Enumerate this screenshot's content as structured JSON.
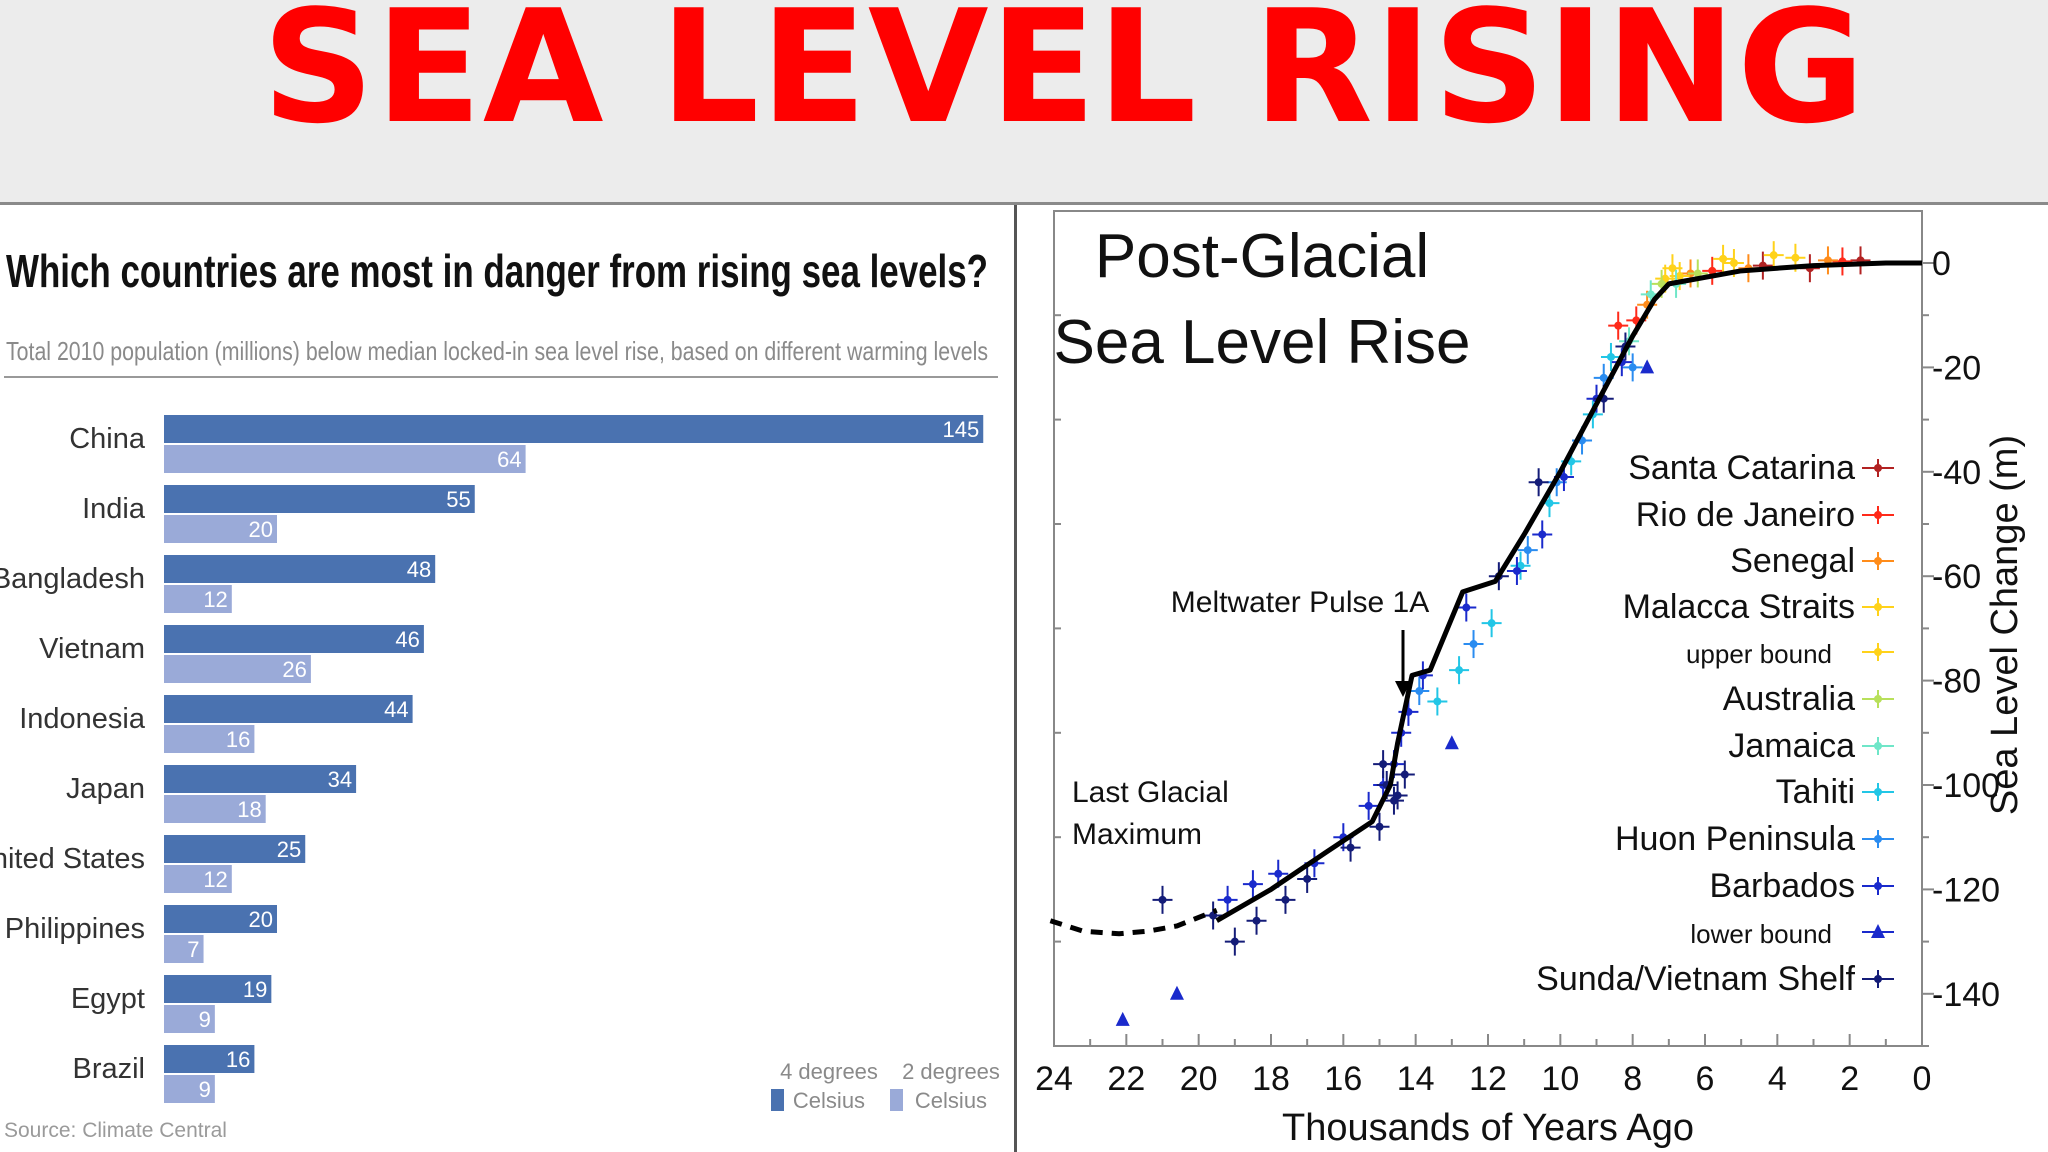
{
  "banner": {
    "title": "SEA LEVEL RISING"
  },
  "colors": {
    "title_red": "#ff0000",
    "bar_4deg": "#4a72b0",
    "bar_2deg": "#9aaad8",
    "curve": "#000000"
  },
  "chart_data": [
    {
      "type": "bar",
      "orientation": "horizontal",
      "title": "Which countries are most in danger from rising sea levels?",
      "subtitle": "Total 2010 population (millions) below median locked-in sea level rise, based on different warming levels",
      "categories": [
        "China",
        "India",
        "Bangladesh",
        "Vietnam",
        "Indonesia",
        "Japan",
        "United States",
        "Philippines",
        "Egypt",
        "Brazil"
      ],
      "series": [
        {
          "name": "4 degrees Celsius",
          "values": [
            145,
            55,
            48,
            46,
            44,
            34,
            25,
            20,
            19,
            16
          ]
        },
        {
          "name": "2 degrees Celsius",
          "values": [
            64,
            20,
            12,
            26,
            16,
            18,
            12,
            7,
            9,
            9
          ]
        }
      ],
      "legend": [
        {
          "line1": "4 degrees",
          "line2": "Celsius"
        },
        {
          "line1": "2 degrees",
          "line2": "Celsius"
        }
      ],
      "legend_position": "bottom-right",
      "source": "Source: Climate Central"
    },
    {
      "type": "line",
      "title_lines": [
        "Post-Glacial",
        "Sea Level Rise"
      ],
      "xlabel": "Thousands of Years Ago",
      "ylabel": "Sea Level Change (m)",
      "xlim": [
        24,
        0
      ],
      "ylim": [
        -150,
        5
      ],
      "x_ticks": [
        24,
        22,
        20,
        18,
        16,
        14,
        12,
        10,
        8,
        6,
        4,
        2,
        0
      ],
      "y_ticks": [
        0,
        -20,
        -40,
        -60,
        -80,
        -100,
        -120,
        -140
      ],
      "curve": {
        "x": [
          19.5,
          18,
          16.5,
          15.2,
          14.7,
          14.5,
          14.1,
          13.6,
          12.7,
          11.8,
          11,
          10,
          9,
          8,
          7.4,
          7,
          5,
          3,
          1,
          0
        ],
        "y": [
          -126,
          -120,
          -113,
          -107,
          -100,
          -92,
          -79,
          -78,
          -63,
          -61,
          -52,
          -40,
          -27,
          -14,
          -7,
          -4,
          -1.5,
          -0.5,
          0,
          0
        ]
      },
      "curve_dashed": {
        "x": [
          24.1,
          23.2,
          22.2,
          21.4,
          20.6,
          19.5
        ],
        "y": [
          -126,
          -128,
          -128.5,
          -128,
          -127,
          -124
        ]
      },
      "sites": [
        {
          "name": "Santa Catarina",
          "color": "#b22222",
          "marker": "errorbar",
          "points": [
            [
              4.4,
              -0.5
            ],
            [
              3.1,
              -1.0
            ],
            [
              1.7,
              0.5
            ]
          ]
        },
        {
          "name": "Rio de Janeiro",
          "color": "#ff2a1a",
          "marker": "errorbar",
          "points": [
            [
              8.4,
              -12
            ],
            [
              7.9,
              -11
            ],
            [
              5.8,
              -1.5
            ],
            [
              2.2,
              0.3
            ]
          ]
        },
        {
          "name": "Senegal",
          "color": "#ff8c1a",
          "marker": "errorbar",
          "points": [
            [
              7.6,
              -8
            ],
            [
              6.4,
              -2
            ],
            [
              4.8,
              -1
            ],
            [
              2.6,
              0.5
            ]
          ]
        },
        {
          "name": "Malacca Straits",
          "color": "#ffd21a",
          "marker": "errorbar",
          "points": [
            [
              7.1,
              -3
            ],
            [
              6.7,
              -2.5
            ],
            [
              5.2,
              0
            ],
            [
              3.5,
              1
            ]
          ]
        },
        {
          "name": "upper bound",
          "color": "#ffd21a",
          "marker": "errorbar",
          "points": [
            [
              6.9,
              -1
            ],
            [
              5.5,
              0.8
            ],
            [
              4.1,
              1.5
            ]
          ]
        },
        {
          "name": "Australia",
          "color": "#b8e05a",
          "marker": "errorbar",
          "points": [
            [
              7.2,
              -4
            ],
            [
              6.2,
              -2
            ]
          ]
        },
        {
          "name": "Jamaica",
          "color": "#6fe6c8",
          "marker": "errorbar",
          "points": [
            [
              8.1,
              -15
            ],
            [
              7.5,
              -6
            ],
            [
              6.8,
              -4
            ]
          ]
        },
        {
          "name": "Tahiti",
          "color": "#22c6e6",
          "marker": "errorbar",
          "points": [
            [
              13.4,
              -84
            ],
            [
              12.8,
              -78
            ],
            [
              11.9,
              -69
            ],
            [
              11.1,
              -58
            ],
            [
              10.3,
              -46
            ],
            [
              9.7,
              -38
            ],
            [
              9.1,
              -29
            ],
            [
              8.6,
              -18
            ]
          ]
        },
        {
          "name": "Huon Peninsula",
          "color": "#2a8cf0",
          "marker": "errorbar",
          "points": [
            [
              13.9,
              -82
            ],
            [
              12.4,
              -73
            ],
            [
              10.9,
              -55
            ],
            [
              10.1,
              -42
            ],
            [
              9.4,
              -34
            ],
            [
              8.8,
              -22
            ],
            [
              8.0,
              -20
            ]
          ]
        },
        {
          "name": "Barbados",
          "color": "#1a2acc",
          "marker": "errorbar",
          "points": [
            [
              19.2,
              -122
            ],
            [
              18.5,
              -119
            ],
            [
              17.8,
              -117
            ],
            [
              16.8,
              -115
            ],
            [
              16.0,
              -110
            ],
            [
              15.3,
              -104
            ],
            [
              14.9,
              -100
            ],
            [
              14.6,
              -96
            ],
            [
              14.4,
              -90
            ],
            [
              14.2,
              -86
            ],
            [
              13.8,
              -79
            ],
            [
              12.6,
              -66
            ],
            [
              11.2,
              -59
            ],
            [
              10.5,
              -52
            ],
            [
              9.9,
              -41
            ],
            [
              9.0,
              -26
            ],
            [
              8.3,
              -19
            ]
          ]
        },
        {
          "name": "lower bound",
          "color": "#1a2acc",
          "marker": "triangle",
          "points": [
            [
              22.1,
              -145
            ],
            [
              20.6,
              -140
            ],
            [
              13.0,
              -92
            ],
            [
              7.6,
              -20
            ]
          ]
        },
        {
          "name": "Sunda/Vietnam Shelf",
          "color": "#141c78",
          "marker": "errorbar",
          "points": [
            [
              21.0,
              -122
            ],
            [
              19.6,
              -125
            ],
            [
              19.0,
              -130
            ],
            [
              18.4,
              -126
            ],
            [
              17.6,
              -122
            ],
            [
              17.0,
              -118
            ],
            [
              15.8,
              -112
            ],
            [
              15.0,
              -108
            ],
            [
              14.8,
              -100
            ],
            [
              14.5,
              -102
            ],
            [
              14.3,
              -98
            ],
            [
              14.9,
              -96
            ],
            [
              14.6,
              -103
            ],
            [
              11.7,
              -60
            ],
            [
              10.6,
              -42
            ],
            [
              8.8,
              -26
            ],
            [
              8.2,
              -16
            ]
          ]
        }
      ],
      "annotations": [
        {
          "text": "Meltwater Pulse 1A",
          "x": 14.1,
          "y": -65
        },
        {
          "line1": "Last Glacial",
          "line2": "Maximum",
          "x": 21.2,
          "y": -100
        }
      ],
      "legend_position": "right"
    }
  ]
}
